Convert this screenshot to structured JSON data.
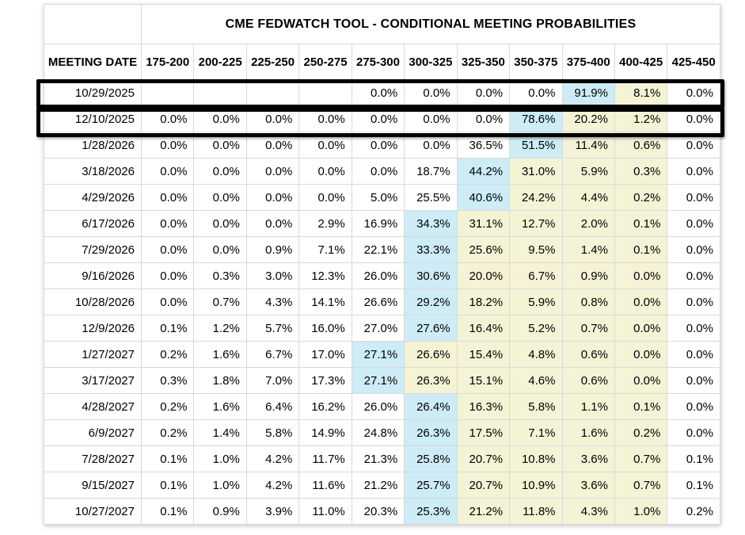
{
  "chart_data": {
    "type": "table",
    "title": "CME FEDWATCH TOOL - CONDITIONAL MEETING PROBABILITIES",
    "row_label": "MEETING DATE",
    "columns": [
      "175-200",
      "200-225",
      "225-250",
      "250-275",
      "275-300",
      "300-325",
      "325-350",
      "350-375",
      "375-400",
      "400-425",
      "425-450"
    ],
    "rows": [
      {
        "date": "10/29/2025",
        "boxed": true,
        "values": [
          "",
          "",
          "",
          "",
          "0.0%",
          "0.0%",
          "0.0%",
          "0.0%",
          "91.9%",
          "8.1%",
          "0.0%"
        ],
        "highlight": [
          "",
          "",
          "",
          "",
          "",
          "",
          "",
          "",
          "blue",
          "yellow",
          ""
        ]
      },
      {
        "date": "12/10/2025",
        "boxed": true,
        "values": [
          "0.0%",
          "0.0%",
          "0.0%",
          "0.0%",
          "0.0%",
          "0.0%",
          "0.0%",
          "78.6%",
          "20.2%",
          "1.2%",
          "0.0%"
        ],
        "highlight": [
          "",
          "",
          "",
          "",
          "",
          "",
          "",
          "blue",
          "yellow",
          "yellow",
          ""
        ]
      },
      {
        "date": "1/28/2026",
        "boxed": false,
        "values": [
          "0.0%",
          "0.0%",
          "0.0%",
          "0.0%",
          "0.0%",
          "0.0%",
          "36.5%",
          "51.5%",
          "11.4%",
          "0.6%",
          "0.0%"
        ],
        "highlight": [
          "",
          "",
          "",
          "",
          "",
          "",
          "",
          "blue",
          "yellow",
          "yellow",
          ""
        ]
      },
      {
        "date": "3/18/2026",
        "boxed": false,
        "values": [
          "0.0%",
          "0.0%",
          "0.0%",
          "0.0%",
          "0.0%",
          "18.7%",
          "44.2%",
          "31.0%",
          "5.9%",
          "0.3%",
          "0.0%"
        ],
        "highlight": [
          "",
          "",
          "",
          "",
          "",
          "",
          "blue",
          "yellow",
          "yellow",
          "yellow",
          ""
        ]
      },
      {
        "date": "4/29/2026",
        "boxed": false,
        "values": [
          "0.0%",
          "0.0%",
          "0.0%",
          "0.0%",
          "5.0%",
          "25.5%",
          "40.6%",
          "24.2%",
          "4.4%",
          "0.2%",
          "0.0%"
        ],
        "highlight": [
          "",
          "",
          "",
          "",
          "",
          "",
          "blue",
          "yellow",
          "yellow",
          "yellow",
          ""
        ]
      },
      {
        "date": "6/17/2026",
        "boxed": false,
        "values": [
          "0.0%",
          "0.0%",
          "0.0%",
          "2.9%",
          "16.9%",
          "34.3%",
          "31.1%",
          "12.7%",
          "2.0%",
          "0.1%",
          "0.0%"
        ],
        "highlight": [
          "",
          "",
          "",
          "",
          "",
          "blue",
          "yellow",
          "yellow",
          "yellow",
          "yellow",
          ""
        ]
      },
      {
        "date": "7/29/2026",
        "boxed": false,
        "values": [
          "0.0%",
          "0.0%",
          "0.9%",
          "7.1%",
          "22.1%",
          "33.3%",
          "25.6%",
          "9.5%",
          "1.4%",
          "0.1%",
          "0.0%"
        ],
        "highlight": [
          "",
          "",
          "",
          "",
          "",
          "blue",
          "yellow",
          "yellow",
          "yellow",
          "yellow",
          ""
        ]
      },
      {
        "date": "9/16/2026",
        "boxed": false,
        "values": [
          "0.0%",
          "0.3%",
          "3.0%",
          "12.3%",
          "26.0%",
          "30.6%",
          "20.0%",
          "6.7%",
          "0.9%",
          "0.0%",
          "0.0%"
        ],
        "highlight": [
          "",
          "",
          "",
          "",
          "",
          "blue",
          "yellow",
          "yellow",
          "yellow",
          "yellow",
          ""
        ]
      },
      {
        "date": "10/28/2026",
        "boxed": false,
        "values": [
          "0.0%",
          "0.7%",
          "4.3%",
          "14.1%",
          "26.6%",
          "29.2%",
          "18.2%",
          "5.9%",
          "0.8%",
          "0.0%",
          "0.0%"
        ],
        "highlight": [
          "",
          "",
          "",
          "",
          "",
          "blue",
          "yellow",
          "yellow",
          "yellow",
          "yellow",
          ""
        ]
      },
      {
        "date": "12/9/2026",
        "boxed": false,
        "values": [
          "0.1%",
          "1.2%",
          "5.7%",
          "16.0%",
          "27.0%",
          "27.6%",
          "16.4%",
          "5.2%",
          "0.7%",
          "0.0%",
          "0.0%"
        ],
        "highlight": [
          "",
          "",
          "",
          "",
          "",
          "blue",
          "yellow",
          "yellow",
          "yellow",
          "yellow",
          ""
        ]
      },
      {
        "date": "1/27/2027",
        "boxed": false,
        "values": [
          "0.2%",
          "1.6%",
          "6.7%",
          "17.0%",
          "27.1%",
          "26.6%",
          "15.4%",
          "4.8%",
          "0.6%",
          "0.0%",
          "0.0%"
        ],
        "highlight": [
          "",
          "",
          "",
          "",
          "blue",
          "yellow",
          "yellow",
          "yellow",
          "yellow",
          "yellow",
          ""
        ]
      },
      {
        "date": "3/17/2027",
        "boxed": false,
        "values": [
          "0.3%",
          "1.8%",
          "7.0%",
          "17.3%",
          "27.1%",
          "26.3%",
          "15.1%",
          "4.6%",
          "0.6%",
          "0.0%",
          "0.0%"
        ],
        "highlight": [
          "",
          "",
          "",
          "",
          "blue",
          "yellow",
          "yellow",
          "yellow",
          "yellow",
          "yellow",
          ""
        ]
      },
      {
        "date": "4/28/2027",
        "boxed": false,
        "values": [
          "0.2%",
          "1.6%",
          "6.4%",
          "16.2%",
          "26.0%",
          "26.4%",
          "16.3%",
          "5.8%",
          "1.1%",
          "0.1%",
          "0.0%"
        ],
        "highlight": [
          "",
          "",
          "",
          "",
          "",
          "blue",
          "yellow",
          "yellow",
          "yellow",
          "yellow",
          ""
        ]
      },
      {
        "date": "6/9/2027",
        "boxed": false,
        "values": [
          "0.2%",
          "1.4%",
          "5.8%",
          "14.9%",
          "24.8%",
          "26.3%",
          "17.5%",
          "7.1%",
          "1.6%",
          "0.2%",
          "0.0%"
        ],
        "highlight": [
          "",
          "",
          "",
          "",
          "",
          "blue",
          "yellow",
          "yellow",
          "yellow",
          "yellow",
          ""
        ]
      },
      {
        "date": "7/28/2027",
        "boxed": false,
        "values": [
          "0.1%",
          "1.0%",
          "4.2%",
          "11.7%",
          "21.3%",
          "25.8%",
          "20.7%",
          "10.8%",
          "3.6%",
          "0.7%",
          "0.1%"
        ],
        "highlight": [
          "",
          "",
          "",
          "",
          "",
          "blue",
          "yellow",
          "yellow",
          "yellow",
          "yellow",
          ""
        ]
      },
      {
        "date": "9/15/2027",
        "boxed": false,
        "values": [
          "0.1%",
          "1.0%",
          "4.2%",
          "11.6%",
          "21.2%",
          "25.7%",
          "20.7%",
          "10.9%",
          "3.6%",
          "0.7%",
          "0.1%"
        ],
        "highlight": [
          "",
          "",
          "",
          "",
          "",
          "blue",
          "yellow",
          "yellow",
          "yellow",
          "yellow",
          ""
        ]
      },
      {
        "date": "10/27/2027",
        "boxed": false,
        "values": [
          "0.1%",
          "0.9%",
          "3.9%",
          "11.0%",
          "20.3%",
          "25.3%",
          "21.2%",
          "11.8%",
          "4.3%",
          "1.0%",
          "0.2%"
        ],
        "highlight": [
          "",
          "",
          "",
          "",
          "",
          "blue",
          "yellow",
          "yellow",
          "yellow",
          "yellow",
          ""
        ]
      }
    ],
    "layout_hints": {
      "grid": true,
      "highlight_meaning_visible_only": "blue and pale-yellow cell shading; first two rows outlined with thick black annotation boxes"
    }
  },
  "colors": {
    "highlight_blue": "#cdecf6",
    "highlight_yellow": "#f5f3d6",
    "grid_line": "#d9d9d9",
    "annotation_box": "#000000",
    "text": "#000000",
    "background": "#ffffff"
  }
}
